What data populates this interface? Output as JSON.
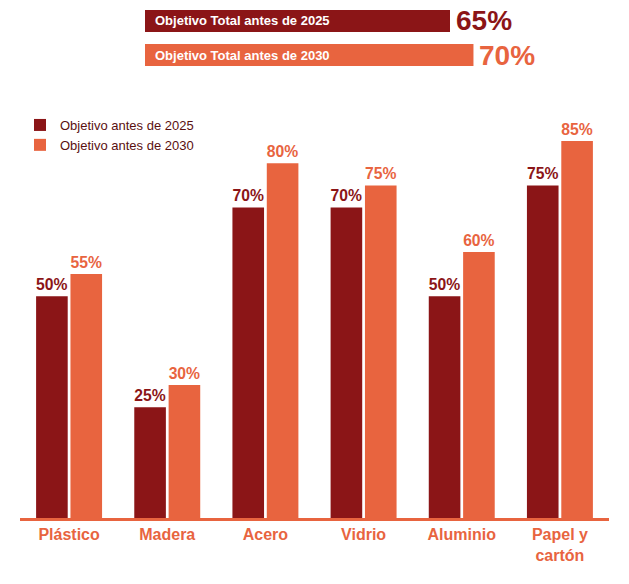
{
  "chart_data": {
    "type": "bar",
    "categories": [
      "Plástico",
      "Madera",
      "Acero",
      "Vidrio",
      "Aluminio",
      "Papel y cartón"
    ],
    "series": [
      {
        "name": "Objetivo antes de 2025",
        "color": "#8b1517",
        "values": [
          50,
          25,
          70,
          70,
          50,
          75
        ],
        "value_labels": [
          "50%",
          "25%",
          "70%",
          "70%",
          "50%",
          "75%"
        ]
      },
      {
        "name": "Objetivo antes de 2030",
        "color": "#e8643f",
        "values": [
          55,
          30,
          80,
          75,
          60,
          85
        ],
        "value_labels": [
          "55%",
          "30%",
          "80%",
          "75%",
          "60%",
          "85%"
        ]
      }
    ],
    "annotations": [
      {
        "text": "Objetivo Total antes de 2025",
        "value": 65,
        "value_label": "65%",
        "color": "#8b1517"
      },
      {
        "text": "Objetivo Total antes de 2030",
        "value": 70,
        "value_label": "70%",
        "color": "#e8643f"
      }
    ],
    "ylim": [
      0,
      92
    ],
    "data_labels": true,
    "tick_labels": "x",
    "legend": "top-left",
    "grid": false
  }
}
